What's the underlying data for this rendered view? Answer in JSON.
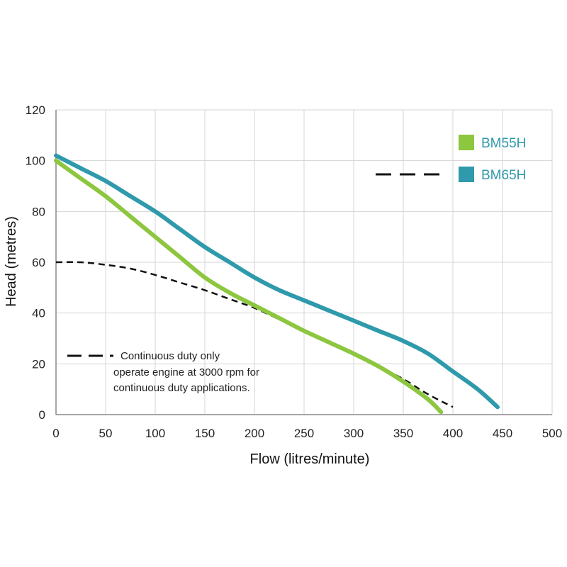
{
  "chart_data": {
    "type": "line",
    "xlabel": "Flow (litres/minute)",
    "ylabel": "Head (metres)",
    "xlim": [
      0,
      500
    ],
    "ylim": [
      0,
      120
    ],
    "xticks": [
      "0",
      "50",
      "100",
      "150",
      "200",
      "250",
      "300",
      "350",
      "400",
      "450",
      "500"
    ],
    "yticks": [
      "0",
      "20",
      "40",
      "60",
      "80",
      "100",
      "120"
    ],
    "grid": true,
    "legend_position": "top-right",
    "series": [
      {
        "name": "BM55H",
        "color": "#8dc63f",
        "style": "solid",
        "x": [
          0,
          25,
          50,
          75,
          100,
          125,
          150,
          175,
          200,
          225,
          250,
          275,
          300,
          325,
          350,
          375,
          388
        ],
        "y": [
          100,
          93,
          86,
          78,
          70,
          62,
          54,
          48,
          43,
          38,
          33,
          28.5,
          24,
          19,
          13,
          6,
          1
        ]
      },
      {
        "name": "BM65H",
        "color": "#2e9aab",
        "style": "solid",
        "x": [
          0,
          25,
          50,
          75,
          100,
          125,
          150,
          175,
          200,
          225,
          250,
          275,
          300,
          325,
          350,
          375,
          400,
          425,
          445
        ],
        "y": [
          102,
          97,
          92,
          86,
          80,
          73,
          66,
          60,
          54,
          49,
          45,
          41,
          37,
          33,
          29,
          24,
          17,
          10,
          3
        ]
      },
      {
        "name": "Continuous duty only",
        "color": "#111111",
        "style": "dashed",
        "x": [
          0,
          25,
          50,
          75,
          100,
          125,
          150,
          175,
          200,
          225,
          250,
          275,
          300,
          325,
          350,
          375,
          400
        ],
        "y": [
          60,
          60,
          59,
          57.5,
          55,
          52,
          49,
          45.5,
          42,
          37.5,
          33,
          28.5,
          24,
          19,
          14,
          8,
          3
        ]
      }
    ],
    "legend": [
      {
        "label": "BM55H",
        "color": "#8dc63f"
      },
      {
        "label": "BM65H",
        "color": "#2e9aab"
      }
    ],
    "annotation": {
      "lines": [
        "Continuous duty only",
        "operate engine at 3000 rpm for",
        "continuous duty applications."
      ]
    }
  }
}
